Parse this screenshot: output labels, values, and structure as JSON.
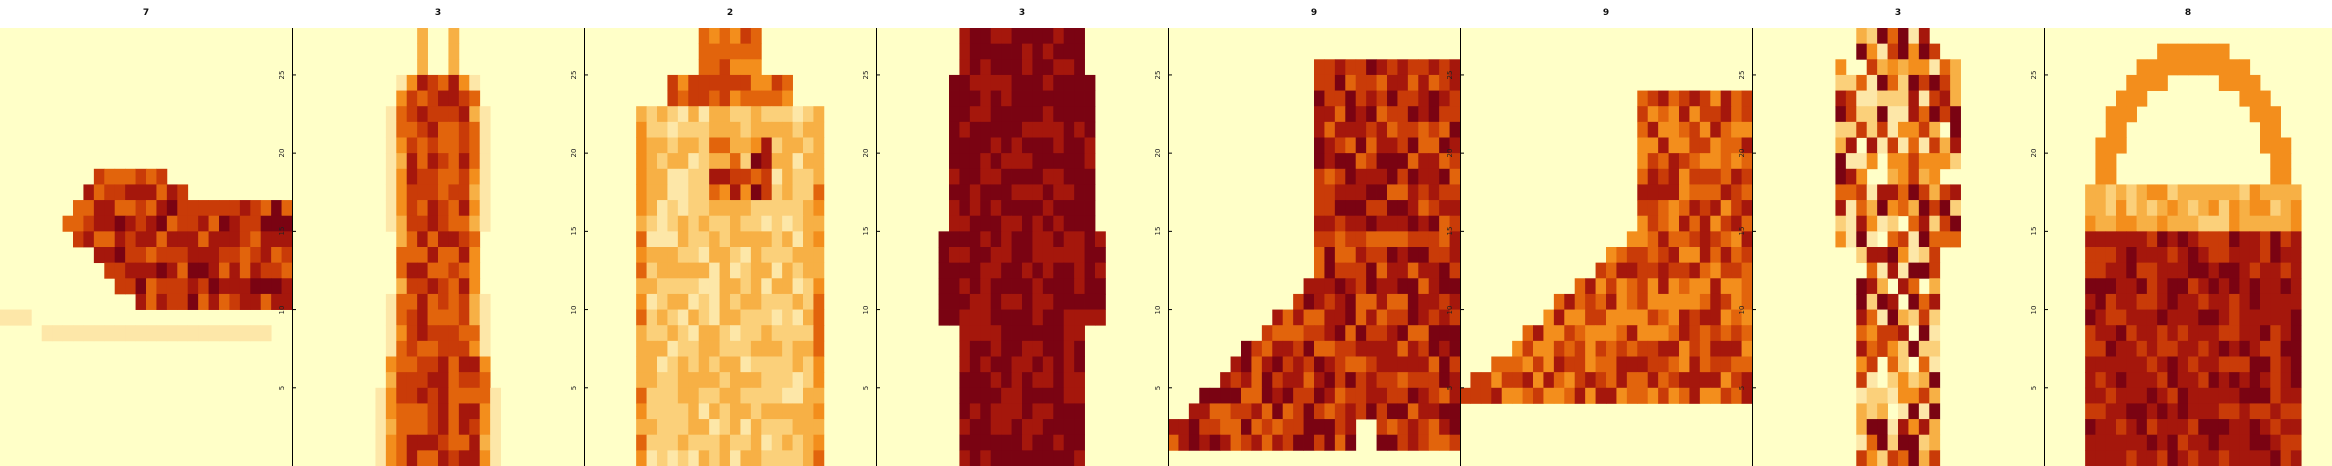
{
  "chart_data": [
    {
      "type": "heatmap",
      "title": "7",
      "y_ticks": [
        "5",
        "10",
        "15",
        "20",
        "25"
      ],
      "ylim": [
        0,
        28
      ],
      "item": "sneaker"
    },
    {
      "type": "heatmap",
      "title": "3",
      "y_ticks": [
        "5",
        "10",
        "15",
        "20",
        "25"
      ],
      "ylim": [
        0,
        28
      ],
      "item": "dress"
    },
    {
      "type": "heatmap",
      "title": "2",
      "y_ticks": [
        "5",
        "10",
        "15",
        "20",
        "25"
      ],
      "ylim": [
        0,
        28
      ],
      "item": "pullover"
    },
    {
      "type": "heatmap",
      "title": "3",
      "y_ticks": [
        "5",
        "10",
        "15",
        "20",
        "25"
      ],
      "ylim": [
        0,
        28
      ],
      "item": "dress"
    },
    {
      "type": "heatmap",
      "title": "9",
      "y_ticks": [
        "5",
        "10",
        "15",
        "20",
        "25"
      ],
      "ylim": [
        0,
        28
      ],
      "item": "ankle boot"
    },
    {
      "type": "heatmap",
      "title": "9",
      "y_ticks": [
        "5",
        "10",
        "15",
        "20",
        "25"
      ],
      "ylim": [
        0,
        28
      ],
      "item": "ankle boot"
    },
    {
      "type": "heatmap",
      "title": "3",
      "y_ticks": [
        "5",
        "10",
        "15",
        "20",
        "25"
      ],
      "ylim": [
        0,
        28
      ],
      "item": "dress"
    },
    {
      "type": "heatmap",
      "title": "8",
      "y_ticks": [
        "5",
        "10",
        "15",
        "20",
        "25"
      ],
      "ylim": [
        0,
        28
      ],
      "item": "bag"
    }
  ],
  "colors": {
    "background": "#ffffc8",
    "palette": [
      "#ffffc8",
      "#fde7a8",
      "#fbd07a",
      "#f7b045",
      "#f38e1c",
      "#e2640c",
      "#c93b08",
      "#a5170c",
      "#7a0312"
    ]
  }
}
